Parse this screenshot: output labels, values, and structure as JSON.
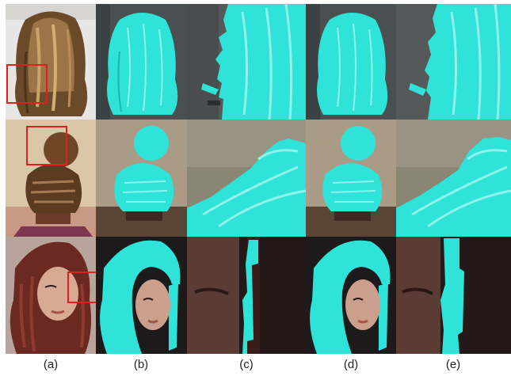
{
  "column_labels": [
    "(a)",
    "(b)",
    "(c)",
    "(d)",
    "(e)"
  ],
  "colors": {
    "mask_cyan": "#2fe3d8",
    "highlight_box": "#e0201c"
  },
  "rows": [
    {
      "subject": "back-of-head-wavy-brown-hair",
      "has_highlight_box": true
    },
    {
      "subject": "braided-bun-updo",
      "has_highlight_box": true
    },
    {
      "subject": "woman-with-red-dreadlocks",
      "has_highlight_box": true
    }
  ]
}
